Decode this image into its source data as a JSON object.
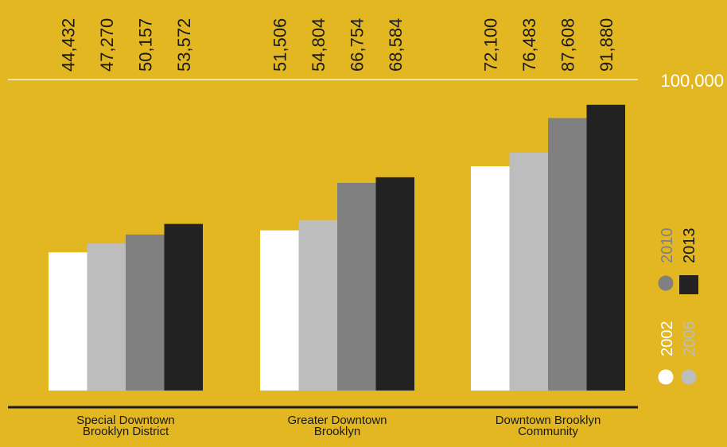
{
  "chart_data": {
    "type": "bar",
    "categories": [
      "Special Downtown Brooklyn District",
      "Greater Downtown Brooklyn",
      "Downtown Brooklyn Community"
    ],
    "category_lines": [
      [
        "Special Downtown",
        "Brooklyn District"
      ],
      [
        "Greater Downtown",
        "Brooklyn"
      ],
      [
        "Downtown Brooklyn",
        "Community"
      ]
    ],
    "series": [
      {
        "name": "2002",
        "values": [
          44432,
          51506,
          72100
        ],
        "color": "#FFFFFF"
      },
      {
        "name": "2006",
        "values": [
          47270,
          54804,
          76483
        ],
        "color": "#BDBDBD"
      },
      {
        "name": "2010",
        "values": [
          50157,
          66754,
          87608
        ],
        "color": "#808080"
      },
      {
        "name": "2013",
        "values": [
          53572,
          68584,
          91880
        ],
        "color": "#222222"
      }
    ],
    "value_labels": [
      [
        "44,432",
        "47,270",
        "50,157",
        "53,572"
      ],
      [
        "51,506",
        "54,804",
        "66,754",
        "68,584"
      ],
      [
        "72,100",
        "76,483",
        "87,608",
        "91,880"
      ]
    ],
    "reference_line": {
      "value": 100000,
      "label": "100,000"
    },
    "ylim": [
      0,
      100000
    ],
    "grid": false,
    "legend_position": "right-bottom-vertical",
    "title": "",
    "xlabel": "",
    "ylabel": "",
    "colors": {
      "background": "#E2B722",
      "text": "#1A1A1A",
      "axis": "#1A1A1A",
      "reference_line": "#FFFFFF"
    }
  }
}
